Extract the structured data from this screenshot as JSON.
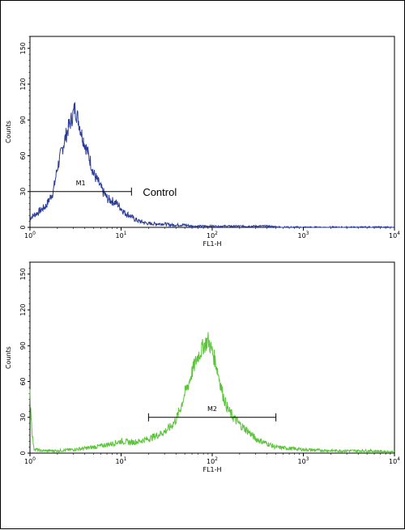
{
  "chart_data": [
    {
      "type": "line",
      "xlabel": "FL1-H",
      "ylabel": "Counts",
      "xscale": "log",
      "xlim": [
        1,
        10000
      ],
      "ylim": [
        0,
        160
      ],
      "x_tick_labels": [
        {
          "value": 1,
          "base": "10",
          "exp": "0"
        },
        {
          "value": 10,
          "base": "10",
          "exp": "1"
        },
        {
          "value": 100,
          "base": "10",
          "exp": "2"
        },
        {
          "value": 1000,
          "base": "10",
          "exp": "3"
        },
        {
          "value": 10000,
          "base": "10",
          "exp": "4"
        }
      ],
      "y_ticks": [
        "0",
        "30",
        "60",
        "90",
        "120",
        "150"
      ],
      "y_tick_values": [
        0,
        30,
        60,
        90,
        120,
        150
      ],
      "color": "#2b3d99",
      "series": [
        {
          "x": [
            1.0,
            1.2,
            1.5,
            1.8,
            2.0,
            2.3,
            2.6,
            2.9,
            3.1,
            3.4,
            3.7,
            4.0,
            4.5,
            5.0,
            5.6,
            6.3,
            7.1,
            8.0,
            9.0,
            10,
            11,
            12.5,
            14,
            16,
            18,
            20,
            25,
            30,
            35,
            40,
            50,
            60,
            80,
            100,
            150,
            200,
            300,
            400,
            600,
            1000,
            2000,
            10000
          ],
          "y": [
            8,
            12,
            18,
            30,
            50,
            68,
            82,
            92,
            100,
            90,
            78,
            70,
            58,
            45,
            38,
            30,
            24,
            22,
            20,
            16,
            12,
            10,
            7,
            5,
            4,
            3,
            3,
            3,
            2,
            2,
            2,
            1,
            1,
            1,
            1,
            1,
            1,
            1,
            0,
            0,
            0,
            0
          ]
        }
      ],
      "gates": [
        {
          "label": "M1",
          "x_start": 1,
          "x_end": 13,
          "y": 30
        }
      ],
      "annotations": [
        "Control"
      ]
    },
    {
      "type": "line",
      "xlabel": "FL1-H",
      "ylabel": "Counts",
      "xscale": "log",
      "xlim": [
        1,
        10000
      ],
      "ylim": [
        0,
        160
      ],
      "x_tick_labels": [
        {
          "value": 1,
          "base": "10",
          "exp": "0"
        },
        {
          "value": 10,
          "base": "10",
          "exp": "1"
        },
        {
          "value": 100,
          "base": "10",
          "exp": "2"
        },
        {
          "value": 1000,
          "base": "10",
          "exp": "3"
        },
        {
          "value": 10000,
          "base": "10",
          "exp": "4"
        }
      ],
      "y_ticks": [
        "0",
        "30",
        "60",
        "90",
        "120",
        "150"
      ],
      "y_tick_values": [
        0,
        30,
        60,
        90,
        120,
        150
      ],
      "color": "#5cc43a",
      "series": [
        {
          "x": [
            1.0,
            1.05,
            1.1,
            1.3,
            1.6,
            2.0,
            3.0,
            4.0,
            6.0,
            8.0,
            10,
            13,
            16,
            20,
            25,
            30,
            35,
            40,
            45,
            50,
            55,
            60,
            65,
            70,
            75,
            80,
            85,
            90,
            95,
            100,
            110,
            120,
            130,
            140,
            150,
            170,
            200,
            250,
            300,
            400,
            500,
            700,
            1000,
            2000,
            5000,
            10000
          ],
          "y": [
            50,
            20,
            4,
            2,
            2,
            2,
            3,
            4,
            6,
            8,
            10,
            9,
            10,
            12,
            15,
            18,
            22,
            28,
            38,
            50,
            58,
            68,
            75,
            82,
            85,
            90,
            92,
            95,
            90,
            85,
            75,
            62,
            50,
            42,
            36,
            30,
            24,
            18,
            12,
            8,
            5,
            4,
            3,
            2,
            2,
            1
          ]
        }
      ],
      "gates": [
        {
          "label": "M2",
          "x_start": 20,
          "x_end": 500,
          "y": 30
        }
      ],
      "annotations": []
    }
  ]
}
